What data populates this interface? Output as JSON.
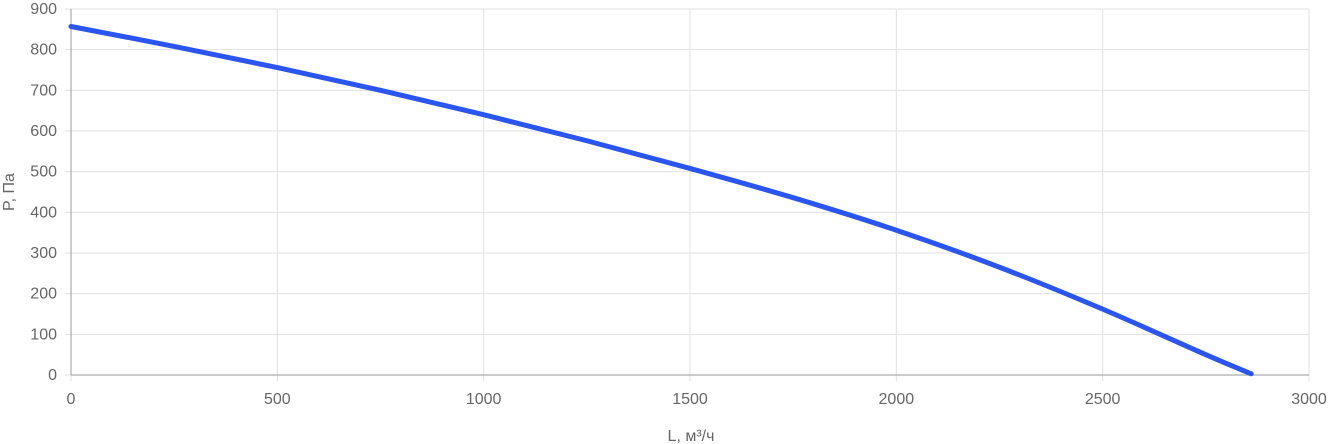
{
  "chart_data": {
    "type": "line",
    "title": "",
    "xlabel": "L, м³/ч",
    "ylabel": "P, Па",
    "xlim": [
      0,
      3000
    ],
    "ylim": [
      0,
      900
    ],
    "x_ticks": [
      0,
      500,
      1000,
      1500,
      2000,
      2500,
      3000
    ],
    "y_ticks": [
      0,
      100,
      200,
      300,
      400,
      500,
      600,
      700,
      800,
      900
    ],
    "grid": true,
    "legend": "none",
    "series": [
      {
        "color": "#2b55f0",
        "points": [
          {
            "x": 0,
            "y": 857
          },
          {
            "x": 250,
            "y": 808
          },
          {
            "x": 500,
            "y": 756
          },
          {
            "x": 750,
            "y": 700
          },
          {
            "x": 1000,
            "y": 640
          },
          {
            "x": 1250,
            "y": 576
          },
          {
            "x": 1500,
            "y": 508
          },
          {
            "x": 1750,
            "y": 436
          },
          {
            "x": 2000,
            "y": 356
          },
          {
            "x": 2250,
            "y": 265
          },
          {
            "x": 2500,
            "y": 162
          },
          {
            "x": 2750,
            "y": 50
          },
          {
            "x": 2860,
            "y": 3
          }
        ]
      }
    ]
  },
  "colors": {
    "grid": "#e1e1e1",
    "axis": "#999999",
    "tick_text": "#666666",
    "series": "#2b55f0"
  }
}
